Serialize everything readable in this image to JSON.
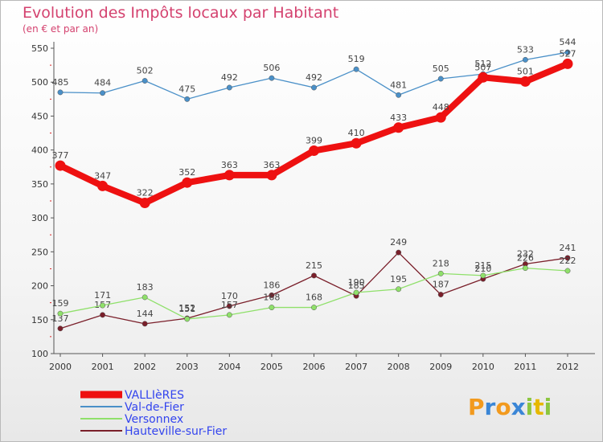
{
  "title": "Evolution des Impôts locaux par Habitant",
  "subtitle": "(en € et par an)",
  "brand": [
    "P",
    "r",
    "o",
    "x",
    "i",
    "t",
    "i"
  ],
  "brand_colors": [
    "#f29a1e",
    "#3a86d6",
    "#f29a1e",
    "#3a86d6",
    "#8cc63f",
    "#e6b800",
    "#8cc63f"
  ],
  "chart_data": {
    "type": "line",
    "x": [
      2000,
      2001,
      2002,
      2003,
      2004,
      2005,
      2006,
      2007,
      2008,
      2009,
      2010,
      2011,
      2012
    ],
    "ylim": [
      100,
      550
    ],
    "yticks": [
      100,
      150,
      200,
      250,
      300,
      350,
      400,
      450,
      500,
      550
    ],
    "grid": false,
    "legend_position": "bottom-left",
    "series": [
      {
        "name": "VALLIèRES",
        "color": "#ee1111",
        "values": [
          377,
          347,
          322,
          352,
          363,
          363,
          399,
          410,
          433,
          448,
          507,
          501,
          527
        ]
      },
      {
        "name": "Val-de-Fier",
        "color": "#4a90c8",
        "values": [
          485,
          484,
          502,
          475,
          492,
          506,
          492,
          519,
          481,
          505,
          512,
          533,
          544
        ]
      },
      {
        "name": "Versonnex",
        "color": "#8fe06a",
        "values": [
          159,
          171,
          183,
          151,
          157,
          168,
          168,
          190,
          195,
          218,
          215,
          226,
          222
        ]
      },
      {
        "name": "Hauteville-sur-Fier",
        "color": "#7a1f2a",
        "values": [
          137,
          157,
          144,
          152,
          170,
          186,
          215,
          185,
          249,
          187,
          210,
          232,
          241
        ]
      }
    ]
  }
}
